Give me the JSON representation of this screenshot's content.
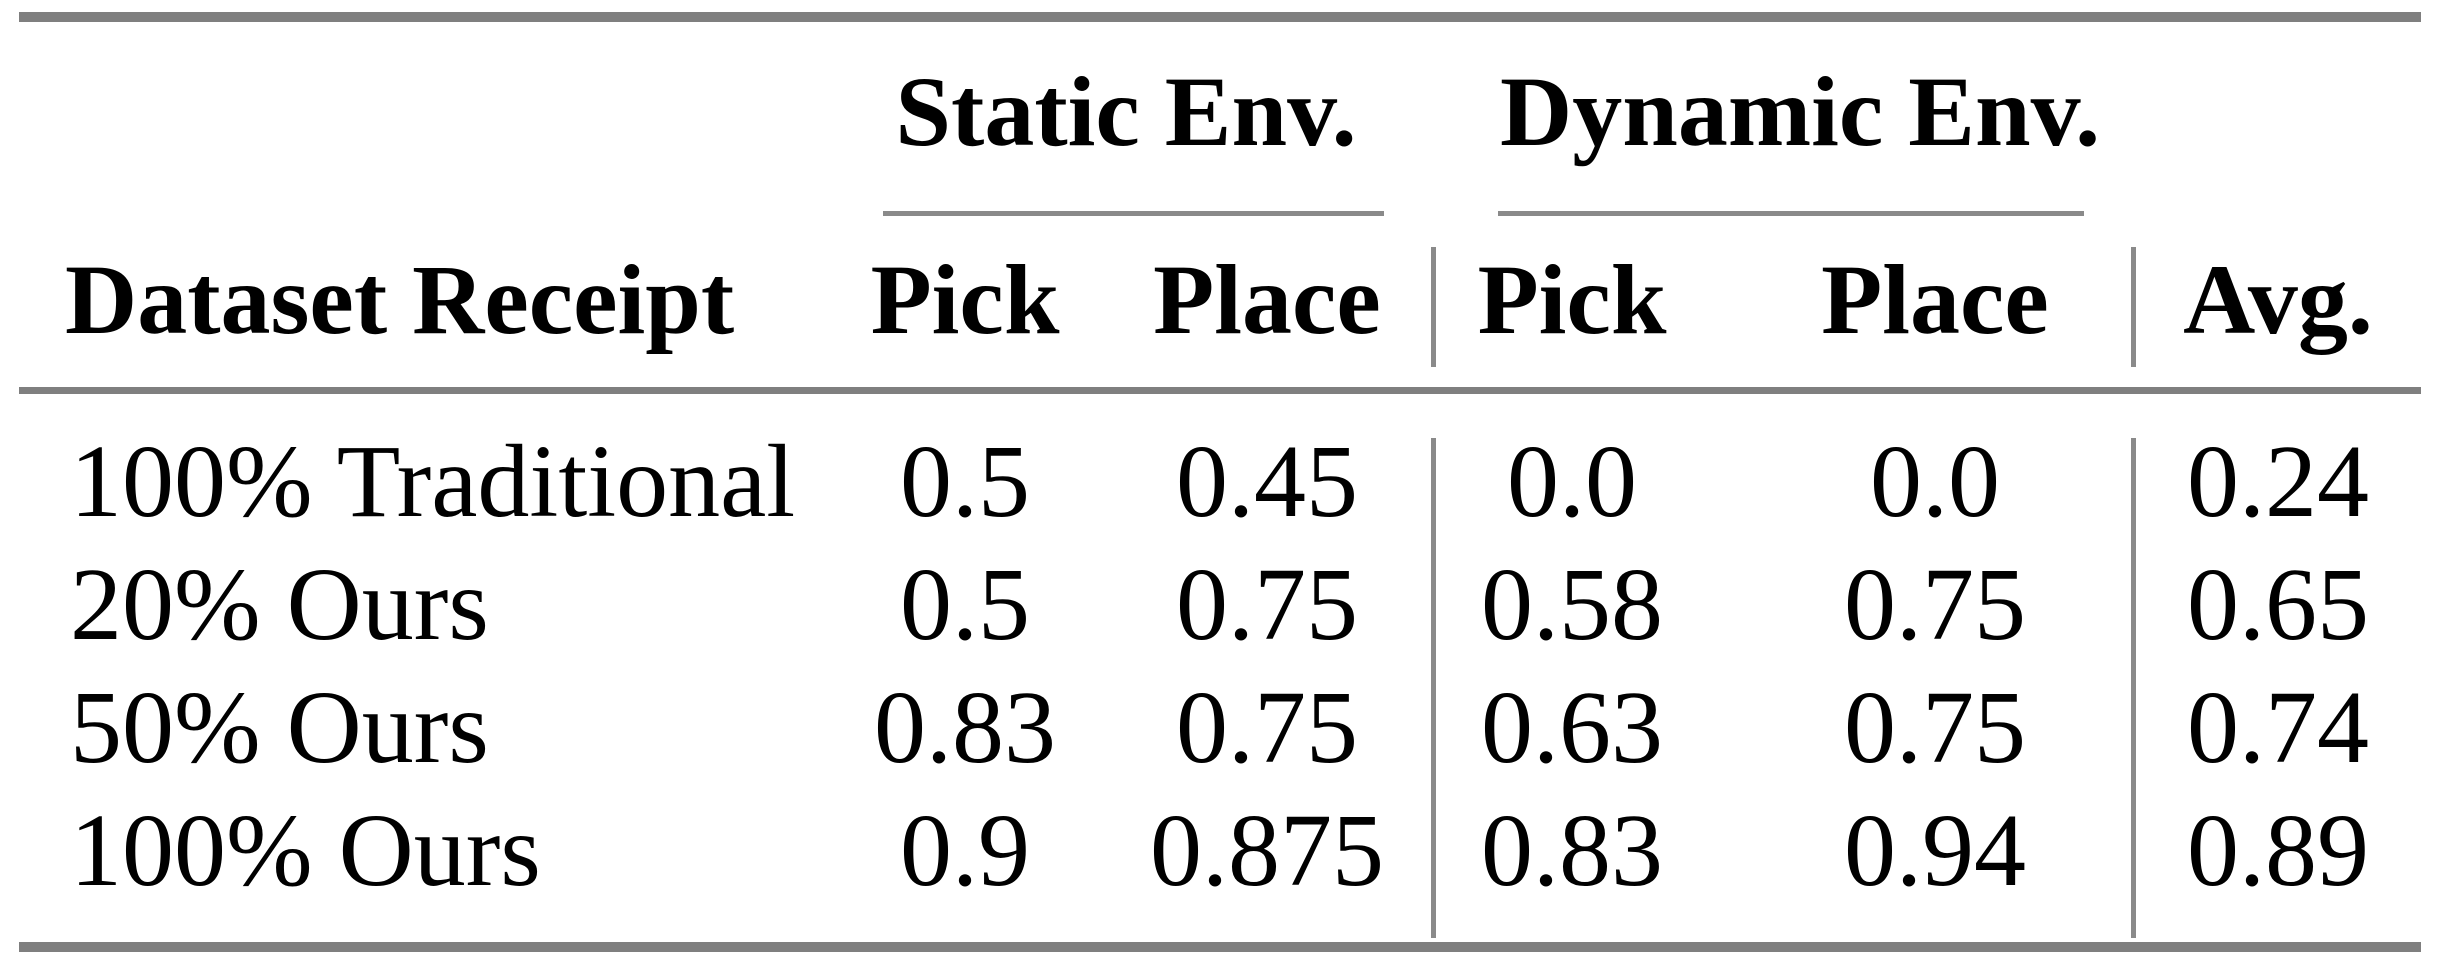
{
  "colors": {
    "background": "#ffffff",
    "text": "#000000",
    "heavy_rule": "#7f7f7f",
    "light_rule": "#8a8a8a"
  },
  "table": {
    "groups": [
      {
        "label": "Static Env."
      },
      {
        "label": "Dynamic Env."
      }
    ],
    "corner_header": "Dataset Receipt",
    "columns": [
      {
        "group": "static",
        "label": "Pick"
      },
      {
        "group": "static",
        "label": "Place"
      },
      {
        "group": "dynamic",
        "label": "Pick"
      },
      {
        "group": "dynamic",
        "label": "Place"
      },
      {
        "group": "overall",
        "label": "Avg."
      }
    ],
    "rows": [
      {
        "label": "100% Traditional",
        "values": [
          "0.5",
          "0.45",
          "0.0",
          "0.0",
          "0.24"
        ]
      },
      {
        "label": "20% Ours",
        "values": [
          "0.5",
          "0.75",
          "0.58",
          "0.75",
          "0.65"
        ]
      },
      {
        "label": "50% Ours",
        "values": [
          "0.83",
          "0.75",
          "0.63",
          "0.75",
          "0.74"
        ]
      },
      {
        "label": "100% Ours",
        "values": [
          "0.9",
          "0.875",
          "0.83",
          "0.94",
          "0.89"
        ]
      }
    ]
  }
}
